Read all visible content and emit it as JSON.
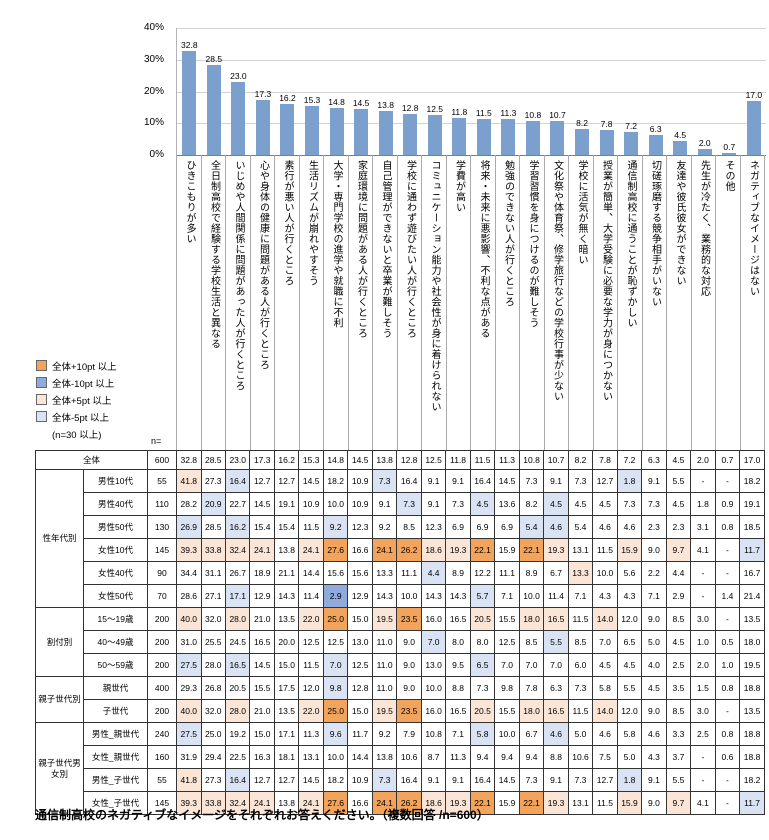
{
  "meta": {
    "caption": "通信制高校のネガティブなイメージをそれぞれお答えください。（複数回答 /n=600）"
  },
  "legend": {
    "items": [
      {
        "label": "全体+10pt 以上",
        "color": "#F2A35C"
      },
      {
        "label": "全体-10pt 以上",
        "color": "#8FAADC"
      },
      {
        "label": "全体+5pt 以上",
        "color": "#FBE5D6"
      },
      {
        "label": "全体-5pt 以上",
        "color": "#DAE3F3"
      }
    ],
    "note": "(n=30 以上)"
  },
  "chart_data": {
    "type": "bar",
    "title": "",
    "xlabel": "",
    "ylabel": "",
    "ylim": [
      0,
      40
    ],
    "yticks": [
      "40%",
      "30%",
      "20%",
      "10%",
      "0%"
    ],
    "grid": true,
    "legend_position": "left-middle",
    "bar_color": "#7BA0CD",
    "categories": [
      "ひきこもりが多い",
      "全日制高校で経験する学校生活と異なる",
      "いじめや人間関係に問題があった人が行くところ",
      "心や身体の健康に問題がある人が行くところ",
      "素行が悪い人が行くところ",
      "生活リズムが崩れやすそう",
      "大学・専門学校の進学や就職に不利",
      "家庭環境に問題がある人が行くところ",
      "自己管理ができないと卒業が難しそう",
      "学校に通わず遊びたい人が行くところ",
      "コミュニケーション能力や社会性が身に着けられない",
      "学費が高い",
      "将来・未来に悪影響、不利な点がある",
      "勉強のできない人が行くところ",
      "学習習慣を身につけるのが難しそう",
      "文化祭や体育祭、修学旅行などの学校行事が少ない",
      "学校に活気が無く暗い",
      "授業が簡単、大学受験に必要な学力が身につかない",
      "通信制高校に通うことが恥ずかしい",
      "切磋琢磨する競争相手がいない",
      "友達や彼氏彼女ができない",
      "先生が冷たく、業務的な対応",
      "その他",
      "ネガティブなイメージはない"
    ],
    "values": [
      32.8,
      28.5,
      23.0,
      17.3,
      16.2,
      15.3,
      14.8,
      14.5,
      13.8,
      12.8,
      12.5,
      11.8,
      11.5,
      11.3,
      10.8,
      10.7,
      8.2,
      7.8,
      7.2,
      6.3,
      4.5,
      2.0,
      0.7,
      17.0
    ]
  },
  "table": {
    "n_label": "n=",
    "highlight_rule": "cell background: +10pt/+5pt above overall = orange tones, -10pt/-5pt below overall = blue tones",
    "rows": [
      {
        "group": "",
        "label": "全体",
        "n": 600,
        "values": [
          32.8,
          28.5,
          23.0,
          17.3,
          16.2,
          15.3,
          14.8,
          14.5,
          13.8,
          12.8,
          12.5,
          11.8,
          11.5,
          11.3,
          10.8,
          10.7,
          8.2,
          7.8,
          7.2,
          6.3,
          4.5,
          2.0,
          0.7,
          17.0
        ]
      },
      {
        "group": "性年代別",
        "label": "男性10代",
        "n": 55,
        "values": [
          41.8,
          27.3,
          16.4,
          12.7,
          12.7,
          14.5,
          18.2,
          10.9,
          7.3,
          16.4,
          9.1,
          9.1,
          16.4,
          14.5,
          7.3,
          9.1,
          7.3,
          12.7,
          1.8,
          9.1,
          5.5,
          "-",
          "-",
          18.2
        ]
      },
      {
        "group": "性年代別",
        "label": "男性40代",
        "n": 110,
        "values": [
          28.2,
          20.9,
          22.7,
          14.5,
          19.1,
          10.9,
          10.0,
          10.9,
          9.1,
          7.3,
          9.1,
          7.3,
          4.5,
          13.6,
          8.2,
          4.5,
          4.5,
          4.5,
          7.3,
          7.3,
          4.5,
          1.8,
          0.9,
          19.1
        ]
      },
      {
        "group": "性年代別",
        "label": "男性50代",
        "n": 130,
        "values": [
          26.9,
          28.5,
          16.2,
          15.4,
          15.4,
          11.5,
          9.2,
          12.3,
          9.2,
          8.5,
          12.3,
          6.9,
          6.9,
          6.9,
          5.4,
          4.6,
          5.4,
          4.6,
          4.6,
          2.3,
          2.3,
          3.1,
          0.8,
          18.5
        ]
      },
      {
        "group": "性年代別",
        "label": "女性10代",
        "n": 145,
        "values": [
          39.3,
          33.8,
          32.4,
          24.1,
          13.8,
          24.1,
          27.6,
          16.6,
          24.1,
          26.2,
          18.6,
          19.3,
          22.1,
          15.9,
          22.1,
          19.3,
          13.1,
          11.5,
          15.9,
          9.0,
          9.7,
          4.1,
          "-",
          11.7
        ]
      },
      {
        "group": "性年代別",
        "label": "女性40代",
        "n": 90,
        "values": [
          34.4,
          31.1,
          26.7,
          18.9,
          21.1,
          14.4,
          15.6,
          15.6,
          13.3,
          11.1,
          4.4,
          8.9,
          12.2,
          11.1,
          8.9,
          6.7,
          13.3,
          10.0,
          5.6,
          2.2,
          4.4,
          "-",
          "-",
          16.7
        ]
      },
      {
        "group": "性年代別",
        "label": "女性50代",
        "n": 70,
        "values": [
          28.6,
          27.1,
          17.1,
          12.9,
          14.3,
          11.4,
          2.9,
          12.9,
          14.3,
          10.0,
          14.3,
          14.3,
          5.7,
          7.1,
          10.0,
          11.4,
          7.1,
          4.3,
          4.3,
          7.1,
          2.9,
          "-",
          1.4,
          21.4
        ]
      },
      {
        "group": "割付別",
        "label": "15〜19歳",
        "n": 200,
        "values": [
          40.0,
          32.0,
          28.0,
          21.0,
          13.5,
          22.0,
          25.0,
          15.0,
          19.5,
          23.5,
          16.0,
          16.5,
          20.5,
          15.5,
          18.0,
          16.5,
          11.5,
          14.0,
          12.0,
          9.0,
          8.5,
          3.0,
          "-",
          13.5
        ]
      },
      {
        "group": "割付別",
        "label": "40〜49歳",
        "n": 200,
        "values": [
          31.0,
          25.5,
          24.5,
          16.5,
          20.0,
          12.5,
          12.5,
          13.0,
          11.0,
          9.0,
          7.0,
          8.0,
          8.0,
          12.5,
          8.5,
          5.5,
          8.5,
          7.0,
          6.5,
          5.0,
          4.5,
          1.0,
          0.5,
          18.0
        ]
      },
      {
        "group": "割付別",
        "label": "50〜59歳",
        "n": 200,
        "values": [
          27.5,
          28.0,
          16.5,
          14.5,
          15.0,
          11.5,
          7.0,
          12.5,
          11.0,
          9.0,
          13.0,
          9.5,
          6.5,
          7.0,
          7.0,
          7.0,
          6.0,
          4.5,
          4.5,
          4.0,
          2.5,
          2.0,
          1.0,
          19.5
        ]
      },
      {
        "group": "親子世代別",
        "label": "親世代",
        "n": 400,
        "values": [
          29.3,
          26.8,
          20.5,
          15.5,
          17.5,
          12.0,
          9.8,
          12.8,
          11.0,
          9.0,
          10.0,
          8.8,
          7.3,
          9.8,
          7.8,
          6.3,
          7.3,
          5.8,
          5.5,
          4.5,
          3.5,
          1.5,
          0.8,
          18.8
        ]
      },
      {
        "group": "親子世代別",
        "label": "子世代",
        "n": 200,
        "values": [
          40.0,
          32.0,
          28.0,
          21.0,
          13.5,
          22.0,
          25.0,
          15.0,
          19.5,
          23.5,
          16.0,
          16.5,
          20.5,
          15.5,
          18.0,
          16.5,
          11.5,
          14.0,
          12.0,
          9.0,
          8.5,
          3.0,
          "-",
          13.5
        ]
      },
      {
        "group": "親子世代男女別",
        "label": "男性_親世代",
        "n": 240,
        "values": [
          27.5,
          25.0,
          19.2,
          15.0,
          17.1,
          11.3,
          9.6,
          11.7,
          9.2,
          7.9,
          10.8,
          7.1,
          5.8,
          10.0,
          6.7,
          4.6,
          5.0,
          4.6,
          5.8,
          4.6,
          3.3,
          2.5,
          0.8,
          18.8
        ]
      },
      {
        "group": "親子世代男女別",
        "label": "女性_親世代",
        "n": 160,
        "values": [
          31.9,
          29.4,
          22.5,
          16.3,
          18.1,
          13.1,
          10.0,
          14.4,
          13.8,
          10.6,
          8.7,
          11.3,
          9.4,
          9.4,
          9.4,
          8.8,
          10.6,
          7.5,
          5.0,
          4.3,
          3.7,
          "-",
          0.6,
          18.8
        ]
      },
      {
        "group": "親子世代男女別",
        "label": "男性_子世代",
        "n": 55,
        "values": [
          41.8,
          27.3,
          16.4,
          12.7,
          12.7,
          14.5,
          18.2,
          10.9,
          7.3,
          16.4,
          9.1,
          9.1,
          16.4,
          14.5,
          7.3,
          9.1,
          7.3,
          12.7,
          1.8,
          9.1,
          5.5,
          "-",
          "-",
          18.2
        ]
      },
      {
        "group": "親子世代男女別",
        "label": "女性_子世代",
        "n": 145,
        "values": [
          39.3,
          33.8,
          32.4,
          24.1,
          13.8,
          24.1,
          27.6,
          16.6,
          24.1,
          26.2,
          18.6,
          19.3,
          22.1,
          15.9,
          22.1,
          19.3,
          13.1,
          11.5,
          15.9,
          9.0,
          9.7,
          4.1,
          "-",
          11.7
        ]
      }
    ]
  }
}
